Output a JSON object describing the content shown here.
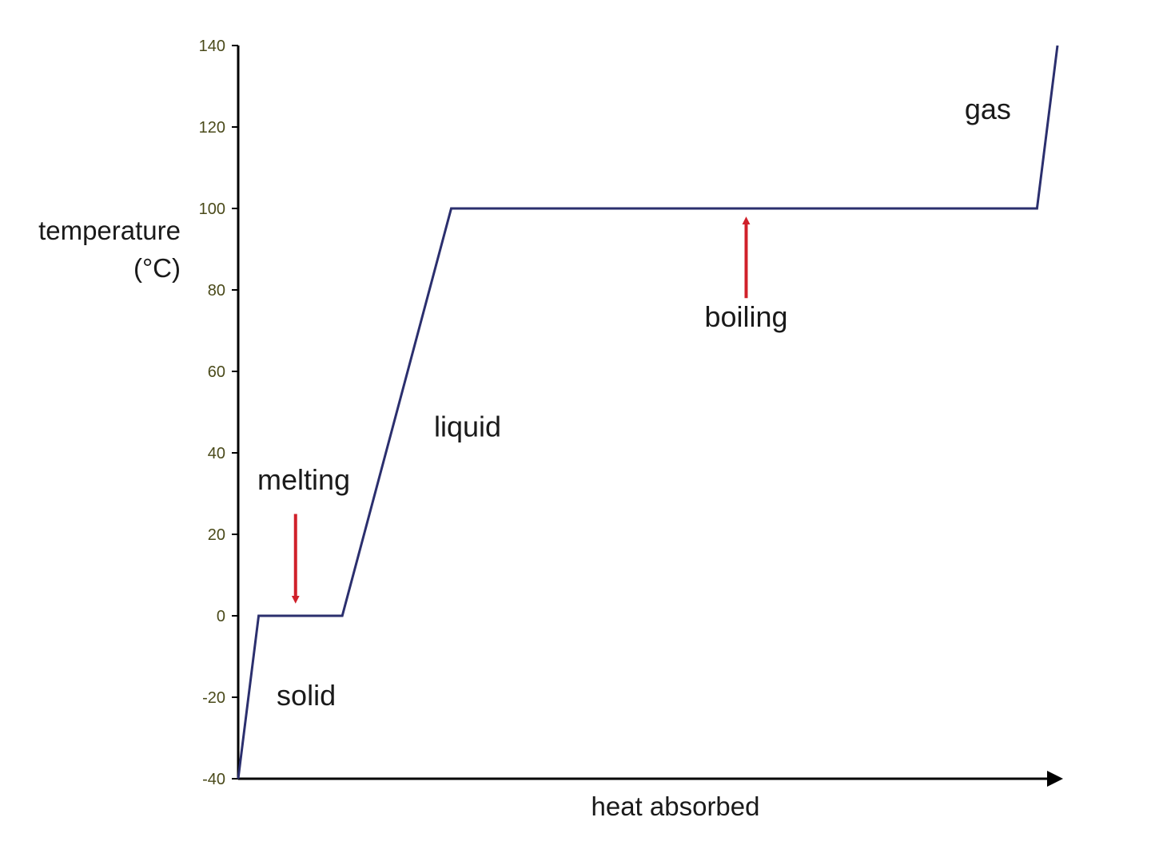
{
  "chart_data": {
    "type": "line",
    "title": "",
    "xlabel": "heat absorbed",
    "ylabel_lines": [
      "temperature",
      "(°C)"
    ],
    "ylim": [
      -40,
      140
    ],
    "yticks": [
      -40,
      -20,
      0,
      20,
      40,
      60,
      80,
      100,
      120,
      140
    ],
    "xlim": [
      0,
      100
    ],
    "x_ticks_shown": false,
    "grid": false,
    "series": [
      {
        "color": "#2b2f6e",
        "points": [
          [
            0,
            -40
          ],
          [
            2.5,
            0
          ],
          [
            12.7,
            0
          ],
          [
            26,
            100
          ],
          [
            97.5,
            100
          ],
          [
            100,
            140
          ]
        ]
      }
    ],
    "annotations": [
      {
        "text": "solid",
        "x": 8.3,
        "y": -22,
        "arrow": false
      },
      {
        "text": "melting",
        "x": 8,
        "y": 31,
        "arrow": true,
        "arrow_from": [
          7,
          25
        ],
        "arrow_to": [
          7,
          2
        ]
      },
      {
        "text": "liquid",
        "x": 28,
        "y": 44,
        "arrow": false
      },
      {
        "text": "boiling",
        "x": 62,
        "y": 71,
        "arrow": true,
        "arrow_from": [
          62,
          78
        ],
        "arrow_to": [
          62,
          99
        ]
      },
      {
        "text": "gas",
        "x": 91.5,
        "y": 122,
        "arrow": false
      }
    ],
    "arrow_color": "#d0202a",
    "axis_color": "#000000"
  }
}
